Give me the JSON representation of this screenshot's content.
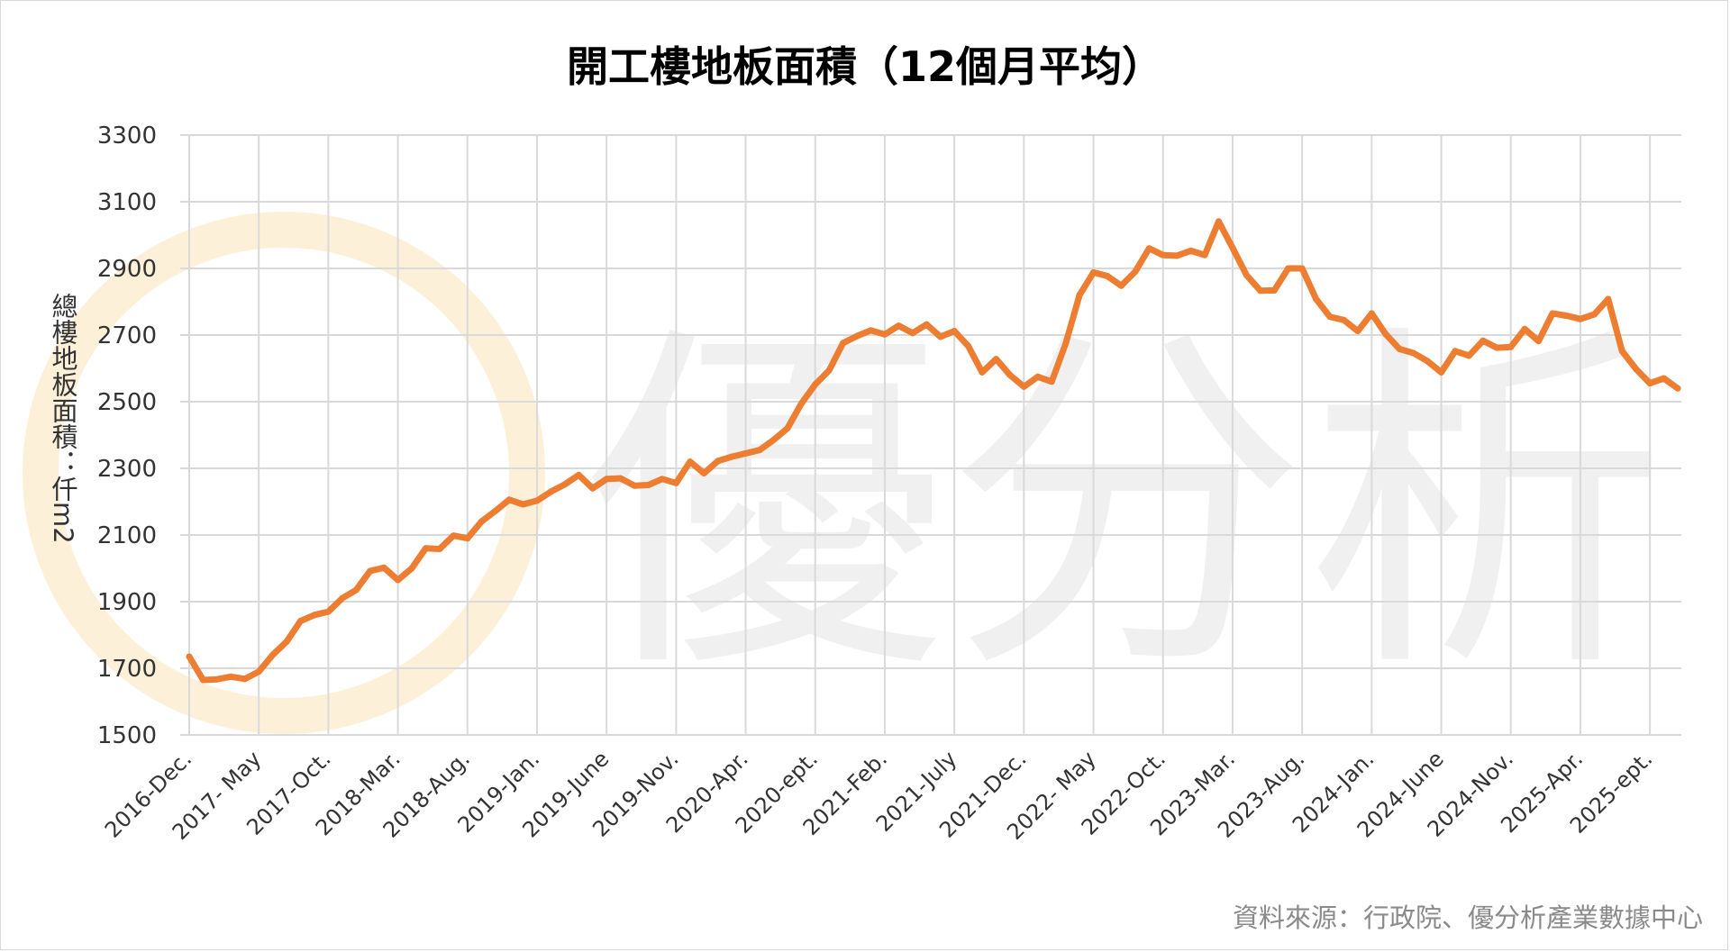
{
  "title": "開工樓地板面積（12個月平均）",
  "source": "資料來源：行政院、優分析產業數據中心",
  "watermark": "優分析",
  "colors": {
    "line": "#ED7D31",
    "grid": "#d9d9d9",
    "watermark": "#f0f0f0",
    "watermark_logo": "#fdf0d8"
  },
  "chart_data": {
    "type": "line",
    "title": "開工樓地板面積（12個月平均）",
    "ylabel": "總樓地板面積：仟m2",
    "xlabel": "",
    "ylim": [
      1500,
      3300
    ],
    "yticks": [
      1500,
      1700,
      1900,
      2100,
      2300,
      2500,
      2700,
      2900,
      3100,
      3300
    ],
    "grid": true,
    "x_tick_labels": [
      {
        "index": 0,
        "label": "2016-Dec."
      },
      {
        "index": 5,
        "label": "2017- May"
      },
      {
        "index": 10,
        "label": "2017-Oct."
      },
      {
        "index": 15,
        "label": "2018-Mar."
      },
      {
        "index": 20,
        "label": "2018-Aug."
      },
      {
        "index": 25,
        "label": "2019-Jan."
      },
      {
        "index": 30,
        "label": "2019-June"
      },
      {
        "index": 35,
        "label": "2019-Nov."
      },
      {
        "index": 40,
        "label": "2020-Apr."
      },
      {
        "index": 45,
        "label": "2020-ept."
      },
      {
        "index": 50,
        "label": "2021-Feb."
      },
      {
        "index": 55,
        "label": "2021-July"
      },
      {
        "index": 60,
        "label": "2021-Dec."
      },
      {
        "index": 65,
        "label": "2022- May"
      },
      {
        "index": 70,
        "label": "2022-Oct."
      },
      {
        "index": 75,
        "label": "2023-Mar."
      },
      {
        "index": 80,
        "label": "2023-Aug."
      },
      {
        "index": 85,
        "label": "2024-Jan."
      },
      {
        "index": 90,
        "label": "2024-June"
      },
      {
        "index": 95,
        "label": "2024-Nov."
      },
      {
        "index": 100,
        "label": "2025-Apr."
      },
      {
        "index": 105,
        "label": "2025-ept."
      }
    ],
    "series": [
      {
        "values": [
          1735,
          1665,
          1667,
          1675,
          1668,
          1690,
          1740,
          1780,
          1842,
          1860,
          1870,
          1910,
          1935,
          1992,
          2002,
          1965,
          2000,
          2060,
          2058,
          2098,
          2090,
          2140,
          2172,
          2206,
          2192,
          2203,
          2230,
          2252,
          2280,
          2240,
          2268,
          2270,
          2248,
          2250,
          2268,
          2256,
          2320,
          2285,
          2322,
          2335,
          2345,
          2355,
          2385,
          2420,
          2494,
          2552,
          2594,
          2676,
          2697,
          2714,
          2702,
          2728,
          2706,
          2732,
          2695,
          2712,
          2667,
          2588,
          2628,
          2580,
          2545,
          2575,
          2560,
          2674,
          2820,
          2888,
          2877,
          2848,
          2890,
          2960,
          2940,
          2938,
          2953,
          2940,
          3041,
          2962,
          2880,
          2833,
          2834,
          2900,
          2900,
          2808,
          2755,
          2745,
          2712,
          2765,
          2703,
          2658,
          2646,
          2622,
          2588,
          2652,
          2638,
          2683,
          2662,
          2664,
          2718,
          2682,
          2765,
          2758,
          2748,
          2762,
          2808,
          2652,
          2598,
          2555,
          2570,
          2540
        ]
      }
    ]
  }
}
